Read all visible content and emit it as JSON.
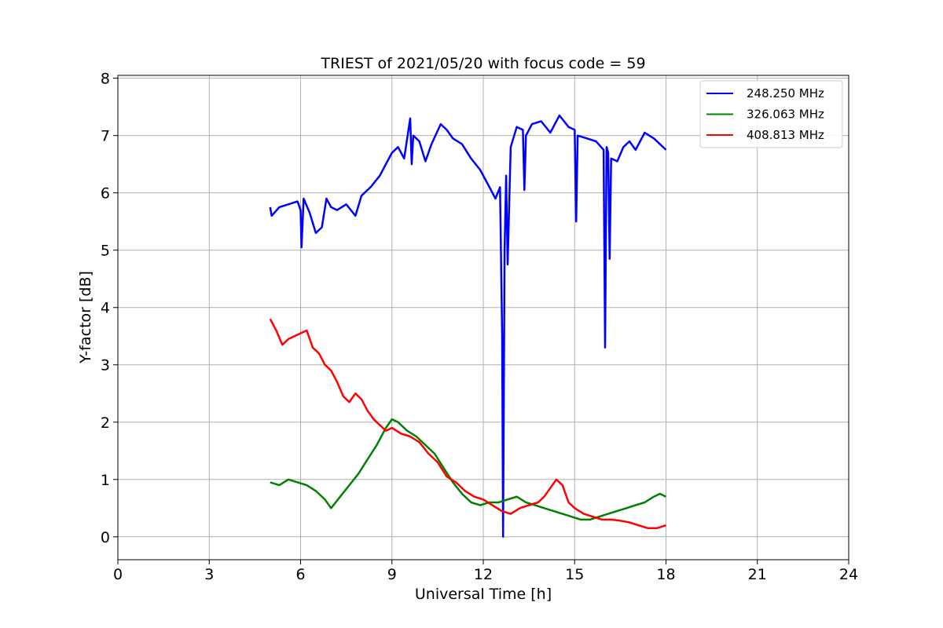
{
  "chart_data": {
    "type": "line",
    "title": "TRIEST of 2021/05/20 with focus code = 59",
    "xlabel": "Universal Time [h]",
    "ylabel": "Y-factor [dB]",
    "xlim": [
      0,
      24
    ],
    "ylim": [
      -0.4,
      8.05
    ],
    "xticks": [
      0,
      3,
      6,
      9,
      12,
      15,
      18,
      21,
      24
    ],
    "yticks": [
      0,
      1,
      2,
      3,
      4,
      5,
      6,
      7,
      8
    ],
    "xtick_labels": [
      "0",
      "3",
      "6",
      "9",
      "12",
      "15",
      "18",
      "21",
      "24"
    ],
    "ytick_labels": [
      "0",
      "1",
      "2",
      "3",
      "4",
      "5",
      "6",
      "7",
      "8"
    ],
    "grid": true,
    "legend_position": "top-right",
    "series": [
      {
        "name": "248.250 MHz",
        "color": "#0000ff",
        "x": [
          5.0,
          5.05,
          5.3,
          5.6,
          5.9,
          6.0,
          6.03,
          6.1,
          6.3,
          6.5,
          6.7,
          6.85,
          7.0,
          7.2,
          7.5,
          7.8,
          8.0,
          8.3,
          8.6,
          8.8,
          9.0,
          9.2,
          9.4,
          9.6,
          9.65,
          9.7,
          9.9,
          10.1,
          10.3,
          10.6,
          10.8,
          11.0,
          11.3,
          11.6,
          11.9,
          12.2,
          12.4,
          12.55,
          12.62,
          12.65,
          12.7,
          12.75,
          12.8,
          12.9,
          13.1,
          13.3,
          13.35,
          13.4,
          13.6,
          13.9,
          14.2,
          14.5,
          14.8,
          15.0,
          15.05,
          15.1,
          15.4,
          15.7,
          15.95,
          16.0,
          16.05,
          16.1,
          16.15,
          16.2,
          16.4,
          16.6,
          16.8,
          17.0,
          17.3,
          17.6,
          17.8,
          18.0
        ],
        "y": [
          5.75,
          5.6,
          5.75,
          5.8,
          5.85,
          5.7,
          5.05,
          5.9,
          5.65,
          5.3,
          5.4,
          5.9,
          5.75,
          5.7,
          5.8,
          5.6,
          5.95,
          6.1,
          6.3,
          6.5,
          6.7,
          6.8,
          6.6,
          7.3,
          6.5,
          7.0,
          6.9,
          6.55,
          6.85,
          7.2,
          7.1,
          6.95,
          6.85,
          6.6,
          6.4,
          6.1,
          5.9,
          6.1,
          3.5,
          0.0,
          5.0,
          6.3,
          4.75,
          6.8,
          7.15,
          7.1,
          6.05,
          7.0,
          7.2,
          7.25,
          7.05,
          7.35,
          7.15,
          7.1,
          5.5,
          7.0,
          6.95,
          6.9,
          6.75,
          3.3,
          6.8,
          6.7,
          4.85,
          6.6,
          6.55,
          6.8,
          6.9,
          6.75,
          7.05,
          6.95,
          6.85,
          6.75
        ]
      },
      {
        "name": "326.063 MHz",
        "color": "#008000",
        "x": [
          5.0,
          5.3,
          5.6,
          5.9,
          6.2,
          6.5,
          6.8,
          7.0,
          7.3,
          7.6,
          7.9,
          8.2,
          8.5,
          8.8,
          9.0,
          9.2,
          9.5,
          9.8,
          10.1,
          10.4,
          10.7,
          11.0,
          11.3,
          11.6,
          11.9,
          12.2,
          12.5,
          12.8,
          13.1,
          13.4,
          13.7,
          14.0,
          14.3,
          14.6,
          14.9,
          15.2,
          15.5,
          15.8,
          16.1,
          16.4,
          16.7,
          17.0,
          17.3,
          17.6,
          17.8,
          18.0
        ],
        "y": [
          0.95,
          0.9,
          1.0,
          0.95,
          0.9,
          0.8,
          0.65,
          0.5,
          0.7,
          0.9,
          1.1,
          1.35,
          1.6,
          1.9,
          2.05,
          2.0,
          1.85,
          1.75,
          1.6,
          1.45,
          1.2,
          0.95,
          0.75,
          0.6,
          0.55,
          0.6,
          0.6,
          0.65,
          0.7,
          0.6,
          0.55,
          0.5,
          0.45,
          0.4,
          0.35,
          0.3,
          0.3,
          0.35,
          0.4,
          0.45,
          0.5,
          0.55,
          0.6,
          0.7,
          0.75,
          0.7
        ]
      },
      {
        "name": "408.813 MHz",
        "color": "#ff0000",
        "x": [
          5.0,
          5.2,
          5.4,
          5.6,
          5.8,
          6.0,
          6.2,
          6.4,
          6.6,
          6.8,
          7.0,
          7.2,
          7.4,
          7.6,
          7.8,
          8.0,
          8.2,
          8.4,
          8.6,
          8.8,
          9.0,
          9.3,
          9.6,
          9.9,
          10.2,
          10.5,
          10.8,
          11.1,
          11.4,
          11.7,
          12.0,
          12.3,
          12.6,
          12.9,
          13.2,
          13.5,
          13.8,
          14.0,
          14.2,
          14.4,
          14.6,
          14.8,
          15.0,
          15.3,
          15.6,
          15.9,
          16.2,
          16.5,
          16.8,
          17.1,
          17.4,
          17.7,
          18.0
        ],
        "y": [
          3.8,
          3.6,
          3.35,
          3.45,
          3.5,
          3.55,
          3.6,
          3.3,
          3.2,
          3.0,
          2.9,
          2.7,
          2.45,
          2.35,
          2.5,
          2.4,
          2.2,
          2.05,
          1.95,
          1.85,
          1.9,
          1.8,
          1.75,
          1.65,
          1.45,
          1.3,
          1.05,
          0.95,
          0.8,
          0.7,
          0.65,
          0.55,
          0.45,
          0.4,
          0.5,
          0.55,
          0.6,
          0.7,
          0.85,
          1.0,
          0.9,
          0.6,
          0.5,
          0.4,
          0.35,
          0.3,
          0.3,
          0.28,
          0.25,
          0.2,
          0.15,
          0.15,
          0.2
        ]
      }
    ]
  }
}
